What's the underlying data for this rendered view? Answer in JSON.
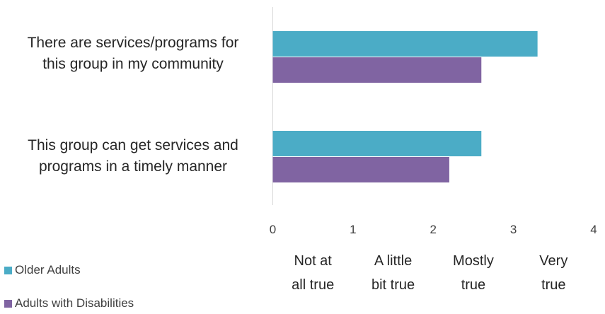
{
  "chart_data": {
    "type": "bar",
    "orientation": "horizontal",
    "categories": [
      [
        "There are services/programs for",
        "this group in my community"
      ],
      [
        "This group can get services and",
        "programs in a timely manner"
      ]
    ],
    "series": [
      {
        "name": "Older Adults",
        "color": "#4bacc6",
        "values": [
          3.3,
          2.6
        ]
      },
      {
        "name": "Adults with Disabilities",
        "color": "#8064a2",
        "values": [
          2.6,
          2.2
        ]
      }
    ],
    "xlim": [
      0,
      4
    ],
    "ticks": [
      "0",
      "1",
      "2",
      "3",
      "4"
    ],
    "scale_labels": [
      [
        "Not at",
        "all true"
      ],
      [
        "A little",
        "bit true"
      ],
      [
        "Mostly",
        "true"
      ],
      [
        "Very",
        "true"
      ]
    ],
    "grid": false,
    "legend_position": "bottom-left"
  }
}
